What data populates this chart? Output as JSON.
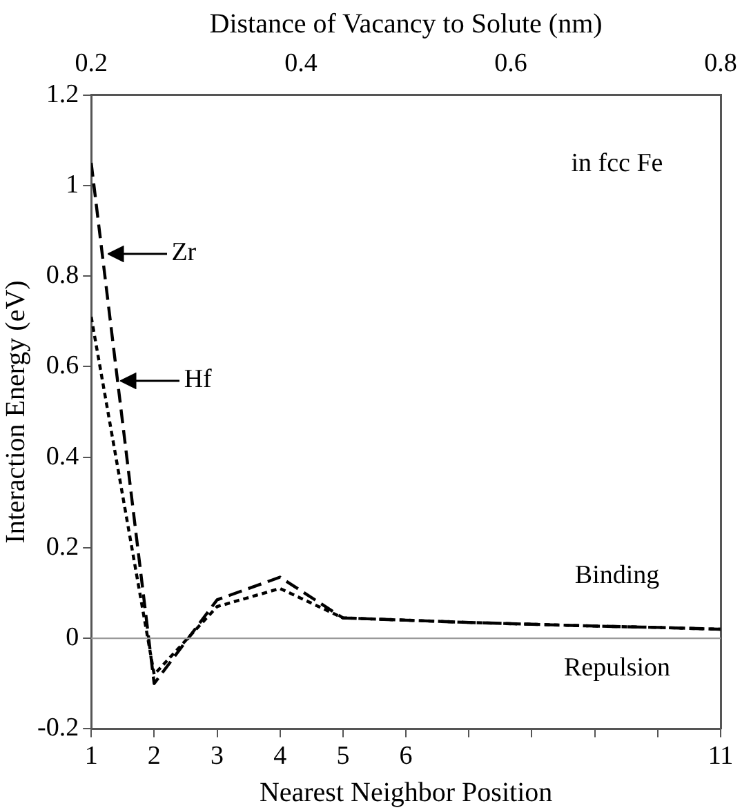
{
  "chart_data": {
    "type": "line",
    "xlabel": "Nearest Neighbor Position",
    "x2label": "Distance of Vacancy to Solute (nm)",
    "ylabel": "Interaction Energy (eV)",
    "x": [
      1,
      2,
      3,
      4,
      5,
      6,
      7,
      8,
      9,
      10,
      11
    ],
    "series": [
      {
        "color": "#000000",
        "line_style": "dashed",
        "values": [
          1.05,
          -0.1,
          0.085,
          0.135,
          0.045,
          0.04,
          0.035,
          0.031,
          0.027,
          0.024,
          0.02
        ]
      },
      {
        "color": "#000000",
        "line_style": "dotted",
        "values": [
          0.71,
          -0.08,
          0.07,
          0.11,
          0.045,
          0.04,
          0.035,
          0.031,
          0.027,
          0.024,
          0.02
        ]
      }
    ],
    "xlim": [
      1,
      11
    ],
    "xticks": [
      1,
      2,
      3,
      4,
      5,
      6,
      {
        "value": 7,
        "label": null
      },
      {
        "value": 8,
        "label": null
      },
      {
        "value": 9,
        "label": null
      },
      {
        "value": 10,
        "label": null
      },
      11
    ],
    "x2lim": [
      0.2,
      0.8
    ],
    "x2ticks": [
      0.2,
      0.4,
      0.6,
      0.8
    ],
    "ylim": [
      -0.2,
      1.2
    ],
    "yticks": [
      -0.2,
      0,
      0.2,
      0.4,
      0.6,
      0.8,
      1,
      1.2
    ],
    "ref_lines": [
      {
        "axis": "y",
        "value": 0,
        "color": "#999999"
      }
    ],
    "annotations": [
      {
        "text": "Zr",
        "x": 1.2,
        "y": 0.85
      },
      {
        "text": "Hf",
        "x": 1.4,
        "y": 0.57
      },
      "in fcc Fe",
      "Binding",
      "Repulsion"
    ],
    "grid": false,
    "legend": false,
    "marker": "none"
  }
}
